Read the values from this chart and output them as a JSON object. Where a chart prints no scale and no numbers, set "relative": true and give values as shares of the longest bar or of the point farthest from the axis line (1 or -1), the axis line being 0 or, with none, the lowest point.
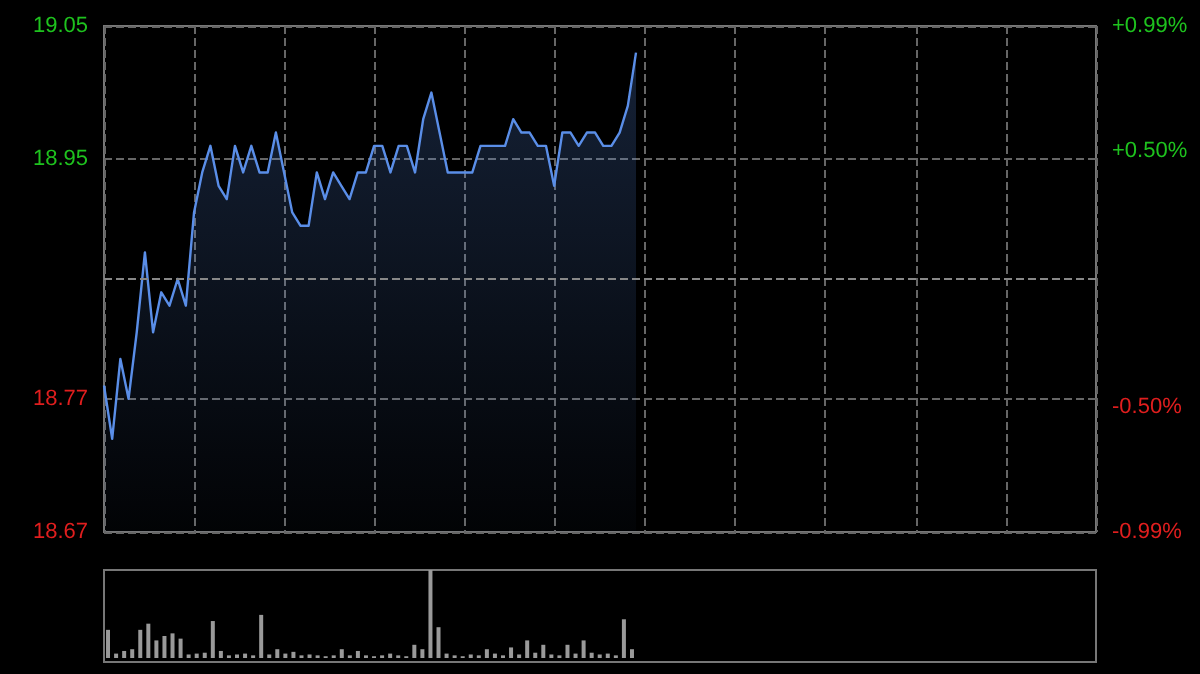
{
  "chart_data": [
    {
      "type": "area",
      "categories": [
        null,
        null,
        null,
        null,
        null,
        null,
        null,
        null,
        null,
        null,
        null,
        null,
        null,
        null,
        null,
        null,
        null,
        null,
        null,
        null,
        null,
        null,
        null,
        null,
        null,
        null,
        null,
        null,
        null,
        null,
        null,
        null,
        null,
        null,
        null,
        null,
        null,
        null,
        null,
        null,
        null,
        null,
        null,
        null,
        null,
        null,
        null,
        null,
        null,
        null,
        null,
        null,
        null,
        null,
        null,
        null,
        null,
        null,
        null,
        null,
        null,
        null,
        null,
        null,
        null,
        null
      ],
      "series": [
        {
          "color": "#5a8ee8",
          "values": [
            18.78,
            18.74,
            18.8,
            18.77,
            18.82,
            18.88,
            18.82,
            18.85,
            18.84,
            18.86,
            18.84,
            18.91,
            18.94,
            18.96,
            18.93,
            18.92,
            18.96,
            18.94,
            18.96,
            18.94,
            18.94,
            18.97,
            18.94,
            18.91,
            18.9,
            18.9,
            18.94,
            18.92,
            18.94,
            18.93,
            18.92,
            18.94,
            18.94,
            18.96,
            18.96,
            18.94,
            18.96,
            18.96,
            18.94,
            18.98,
            19.0,
            18.97,
            18.94,
            18.94,
            18.94,
            18.94,
            18.96,
            18.96,
            18.96,
            18.96,
            18.98,
            18.97,
            18.97,
            18.96,
            18.96,
            18.93,
            18.97,
            18.97,
            18.96,
            18.97,
            18.97,
            18.96,
            18.96,
            18.97,
            18.99,
            19.03
          ]
        }
      ],
      "ylim": [
        18.67,
        19.05
      ],
      "yticks": [
        18.67,
        18.77,
        18.95,
        19.05
      ],
      "y2lim": [
        -0.99,
        0.99
      ],
      "y2ticks": [
        {
          "value": -0.99,
          "label": "-0.99%"
        },
        {
          "value": -0.5,
          "label": "-0.50%"
        },
        {
          "value": 0.5,
          "label": "+0.50%"
        },
        {
          "value": 0.99,
          "label": "+0.99%"
        }
      ],
      "ref_lines": [
        {
          "axis": "y",
          "value": 18.86,
          "color": "#888888",
          "line_style": "dashed"
        }
      ],
      "grid": true,
      "marker": "none",
      "line_style": "solid"
    },
    {
      "type": "bar",
      "relative": true,
      "categories": [
        null,
        null,
        null,
        null,
        null,
        null,
        null,
        null,
        null,
        null,
        null,
        null,
        null,
        null,
        null,
        null,
        null,
        null,
        null,
        null,
        null,
        null,
        null,
        null,
        null,
        null,
        null,
        null,
        null,
        null,
        null,
        null,
        null,
        null,
        null,
        null,
        null,
        null,
        null,
        null,
        null,
        null,
        null,
        null,
        null,
        null,
        null,
        null,
        null,
        null,
        null,
        null,
        null,
        null,
        null,
        null,
        null,
        null,
        null,
        null,
        null,
        null,
        null,
        null,
        null,
        null
      ],
      "series": [
        {
          "color": "#9a9a9a",
          "values": [
            0.32,
            0.05,
            0.08,
            0.1,
            0.32,
            0.39,
            0.2,
            0.25,
            0.28,
            0.22,
            0.04,
            0.05,
            0.06,
            0.42,
            0.08,
            0.03,
            0.04,
            0.05,
            0.03,
            0.49,
            0.04,
            0.1,
            0.05,
            0.07,
            0.03,
            0.04,
            0.03,
            0.02,
            0.03,
            0.1,
            0.03,
            0.08,
            0.03,
            0.02,
            0.03,
            0.05,
            0.03,
            0.02,
            0.15,
            0.1,
            1,
            0.35,
            0.05,
            0.03,
            0.02,
            0.04,
            0.03,
            0.1,
            0.05,
            0.03,
            0.12,
            0.04,
            0.2,
            0.06,
            0.15,
            0.04,
            0.03,
            0.15,
            0.05,
            0.2,
            0.06,
            0.04,
            0.05,
            0.03,
            0.44,
            0.1
          ]
        }
      ]
    }
  ]
}
